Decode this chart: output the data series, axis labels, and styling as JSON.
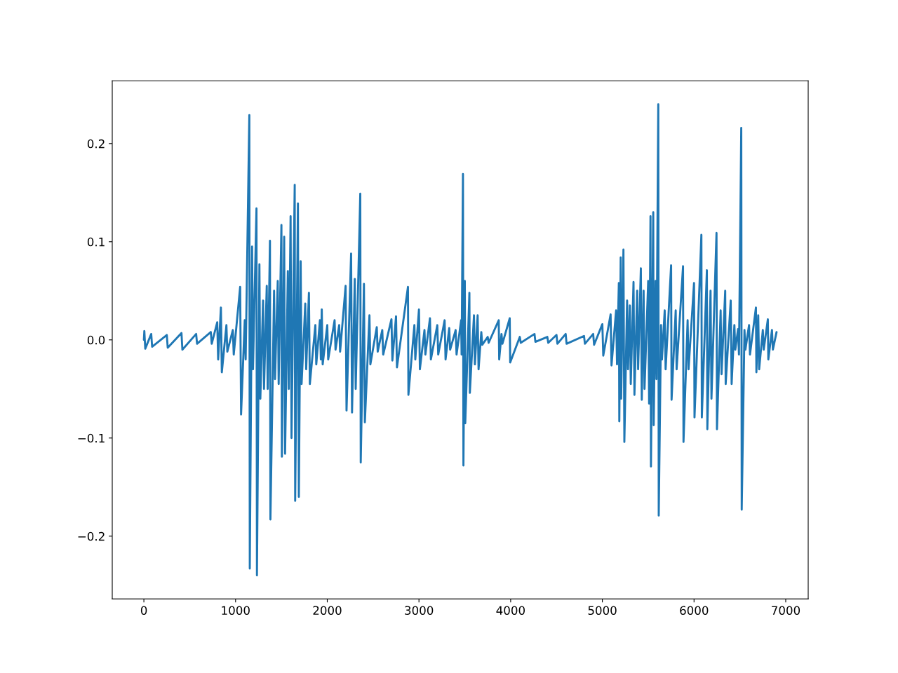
{
  "chart_data": {
    "type": "line",
    "color": "#1f77b4",
    "x": [
      0,
      5,
      15,
      80,
      90,
      250,
      260,
      410,
      420,
      570,
      580,
      730,
      740,
      800,
      810,
      840,
      850,
      900,
      910,
      970,
      980,
      1050,
      1060,
      1100,
      1110,
      1150,
      1155,
      1180,
      1190,
      1228,
      1233,
      1260,
      1270,
      1300,
      1310,
      1340,
      1350,
      1375,
      1380,
      1420,
      1430,
      1460,
      1470,
      1500,
      1505,
      1530,
      1540,
      1570,
      1580,
      1600,
      1610,
      1645,
      1650,
      1680,
      1690,
      1710,
      1720,
      1760,
      1770,
      1800,
      1810,
      1870,
      1880,
      1920,
      1930,
      1940,
      1950,
      2000,
      2010,
      2080,
      2090,
      2130,
      2140,
      2200,
      2210,
      2260,
      2270,
      2300,
      2310,
      2360,
      2365,
      2400,
      2410,
      2460,
      2470,
      2540,
      2550,
      2600,
      2610,
      2700,
      2710,
      2750,
      2760,
      2880,
      2885,
      2950,
      2960,
      3000,
      3010,
      3060,
      3070,
      3120,
      3130,
      3200,
      3210,
      3280,
      3290,
      3330,
      3340,
      3400,
      3410,
      3460,
      3465,
      3480,
      3485,
      3500,
      3505,
      3550,
      3555,
      3600,
      3610,
      3640,
      3650,
      3680,
      3690,
      3750,
      3760,
      3870,
      3875,
      3900,
      3910,
      3990,
      3995,
      4100,
      4110,
      4260,
      4270,
      4400,
      4410,
      4500,
      4510,
      4600,
      4610,
      4800,
      4810,
      4900,
      4910,
      5000,
      5010,
      5090,
      5100,
      5150,
      5160,
      5180,
      5185,
      5200,
      5205,
      5230,
      5240,
      5270,
      5280,
      5300,
      5310,
      5340,
      5350,
      5380,
      5390,
      5420,
      5430,
      5450,
      5460,
      5500,
      5510,
      5525,
      5530,
      5555,
      5560,
      5580,
      5590,
      5610,
      5615,
      5640,
      5650,
      5680,
      5690,
      5750,
      5755,
      5800,
      5810,
      5880,
      5885,
      5930,
      5940,
      6000,
      6005,
      6080,
      6085,
      6140,
      6145,
      6180,
      6190,
      6245,
      6250,
      6290,
      6300,
      6340,
      6345,
      6400,
      6410,
      6440,
      6450,
      6480,
      6490,
      6515,
      6520,
      6550,
      6560,
      6600,
      6610,
      6675,
      6680,
      6700,
      6710,
      6750,
      6760,
      6805,
      6810,
      6850,
      6860,
      6900
    ],
    "values": [
      0,
      0.009,
      -0.009,
      0.006,
      -0.007,
      0.005,
      -0.008,
      0.007,
      -0.01,
      0.006,
      -0.004,
      0.008,
      -0.004,
      0.018,
      -0.02,
      0.033,
      -0.033,
      0.015,
      -0.012,
      0.01,
      -0.015,
      0.054,
      -0.076,
      0.02,
      -0.02,
      0.229,
      -0.233,
      0.095,
      -0.03,
      0.134,
      -0.24,
      0.077,
      -0.06,
      0.04,
      -0.05,
      0.055,
      -0.05,
      0.101,
      -0.183,
      0.05,
      -0.04,
      0.06,
      -0.045,
      0.117,
      -0.119,
      0.105,
      -0.116,
      0.07,
      -0.05,
      0.126,
      -0.1,
      0.158,
      -0.164,
      0.139,
      -0.16,
      0.08,
      -0.045,
      0.037,
      -0.03,
      0.048,
      -0.045,
      0.015,
      -0.025,
      0.02,
      -0.02,
      0.031,
      -0.025,
      0.015,
      -0.02,
      0.02,
      -0.01,
      0.015,
      -0.012,
      0.055,
      -0.072,
      0.088,
      -0.074,
      0.062,
      -0.05,
      0.149,
      -0.125,
      0.057,
      -0.084,
      0.025,
      -0.025,
      0.013,
      -0.012,
      0.01,
      -0.015,
      0.021,
      -0.021,
      0.024,
      -0.028,
      0.054,
      -0.056,
      0.015,
      -0.02,
      0.031,
      -0.03,
      0.01,
      -0.015,
      0.022,
      -0.02,
      0.015,
      -0.015,
      0.02,
      -0.02,
      0.012,
      -0.01,
      0.01,
      -0.015,
      0.02,
      -0.015,
      0.169,
      -0.128,
      0.06,
      -0.085,
      0.048,
      -0.054,
      0.025,
      -0.025,
      0.025,
      -0.03,
      0.008,
      -0.005,
      0.003,
      -0.003,
      0.02,
      -0.02,
      0.006,
      -0.004,
      0.022,
      -0.023,
      0.003,
      -0.003,
      0.006,
      -0.002,
      0.003,
      -0.003,
      0.005,
      -0.004,
      0.006,
      -0.004,
      0.004,
      -0.004,
      0.006,
      -0.005,
      0.016,
      -0.016,
      0.026,
      -0.026,
      0.03,
      -0.025,
      0.058,
      -0.083,
      0.084,
      -0.06,
      0.092,
      -0.104,
      0.04,
      -0.03,
      0.035,
      -0.045,
      0.059,
      -0.056,
      0.05,
      -0.03,
      0.073,
      -0.061,
      0.05,
      -0.05,
      0.06,
      -0.065,
      0.126,
      -0.129,
      0.13,
      -0.087,
      0.06,
      -0.04,
      0.24,
      -0.179,
      0.015,
      -0.02,
      0.03,
      -0.03,
      0.076,
      -0.061,
      0.03,
      -0.03,
      0.075,
      -0.104,
      0.02,
      -0.03,
      0.058,
      -0.079,
      0.107,
      -0.079,
      0.071,
      -0.091,
      0.05,
      -0.06,
      0.109,
      -0.091,
      0.03,
      -0.035,
      0.05,
      -0.045,
      0.04,
      -0.045,
      0.015,
      -0.01,
      0.011,
      -0.015,
      0.216,
      -0.173,
      0.01,
      -0.01,
      0.015,
      -0.015,
      0.033,
      -0.033,
      0.025,
      -0.03,
      0.01,
      -0.01,
      0.021,
      -0.02,
      0.01,
      -0.01,
      0.008
    ],
    "xlim": [
      -345,
      7245
    ],
    "ylim": [
      -0.264,
      0.264
    ],
    "xticks": [
      0,
      1000,
      2000,
      3000,
      4000,
      5000,
      6000,
      7000
    ],
    "yticks": [
      {
        "value": -0.2,
        "label": "−0.2"
      },
      {
        "value": -0.1,
        "label": "−0.1"
      },
      {
        "value": 0,
        "label": "0.0"
      },
      0.1,
      0.2
    ]
  }
}
